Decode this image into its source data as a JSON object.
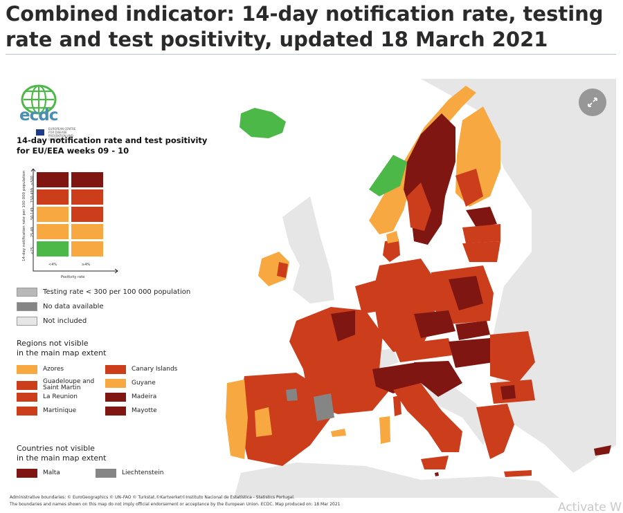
{
  "header": {
    "title": "Combined indicator: 14-day notification rate, testing rate and test positivity, updated 18 March 2021"
  },
  "logo": {
    "text": "ecdc",
    "subtext": "EUROPEAN CENTRE FOR DISEASE PREVENTION AND CONTROL"
  },
  "legend": {
    "title": "14-day notification rate and test positivity for EU/EEA weeks 09 - 10",
    "y_axis_label": "14-day notification rate per 100 000 population",
    "y_ticks": [
      "≥500",
      "150-499",
      "50-149",
      "25-49",
      "<25"
    ],
    "x_ticks": [
      "<4%",
      "≥4%"
    ],
    "x_axis_label": "Positivity rate",
    "matrix_colors": [
      [
        "#7f1612",
        "#7f1612"
      ],
      [
        "#cc3d1c",
        "#cc3d1c"
      ],
      [
        "#f7a840",
        "#cc3d1c"
      ],
      [
        "#f7a840",
        "#f7a840"
      ],
      [
        "#4cb848",
        "#f7a840"
      ]
    ],
    "categories": [
      {
        "label": "Testing rate < 300 per 100 000 population",
        "color": "#b8b8b8"
      },
      {
        "label": "No data available",
        "color": "#858585"
      },
      {
        "label": "Not included",
        "color": "#e6e6e6"
      }
    ]
  },
  "regions": {
    "heading_line1": "Regions not visible",
    "heading_line2": "in the main map extent",
    "items": [
      {
        "label": "Azores",
        "color": "#f7a840"
      },
      {
        "label": "Canary Islands",
        "color": "#cc3d1c"
      },
      {
        "label": "Guadeloupe and Saint Martin",
        "color": "#cc3d1c"
      },
      {
        "label": "Guyane",
        "color": "#f7a840"
      },
      {
        "label": "La Reunion",
        "color": "#cc3d1c"
      },
      {
        "label": "Madeira",
        "color": "#7f1612"
      },
      {
        "label": "Martinique",
        "color": "#cc3d1c"
      },
      {
        "label": "Mayotte",
        "color": "#7f1612"
      }
    ]
  },
  "countries": {
    "heading_line1": "Countries not visible",
    "heading_line2": "in the main map extent",
    "items": [
      {
        "label": "Malta",
        "color": "#7f1612"
      },
      {
        "label": "Liechtenstein",
        "color": "#858585"
      }
    ]
  },
  "footer": {
    "line1": "Administrative boundaries: © EuroGeographics © UN–FAO © Turkstat.©Kartverket©Instituto Nacional de Estatística - Statistics Portugal.",
    "line2": "The boundaries and names shown on this map do not imply official endorsement or acceptance by the European Union. ECDC. Map produced on: 18 Mar 2021"
  },
  "watermark": "Activate W",
  "colors": {
    "dark_red": "#7f1612",
    "red": "#cc3d1c",
    "orange": "#f7a840",
    "green": "#4cb848",
    "grey_no_data": "#858585",
    "grey_low_testing": "#b8b8b8",
    "grey_not_included": "#e6e6e6"
  }
}
